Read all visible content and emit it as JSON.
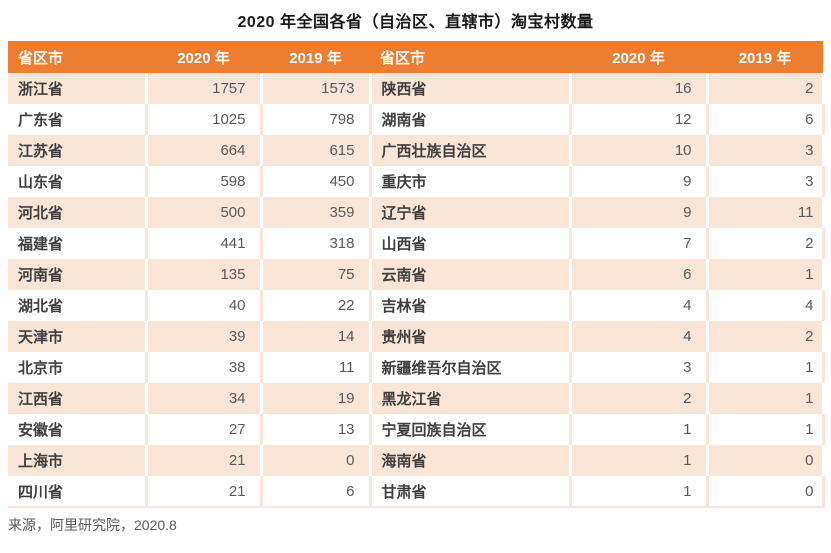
{
  "title": "2020 年全国各省（自治区、直辖市）淘宝村数量",
  "source": "来源，阿里研究院，2020.8",
  "colors": {
    "header_bg": "#ed7d31",
    "header_text": "#ffffff",
    "alt_row_bg": "#fbe5d6",
    "plain_row_bg": "#ffffff",
    "province_text": "#3f3f3f",
    "value_text": "#595959",
    "title_text": "#1a1a1a"
  },
  "chart_data": {
    "type": "table",
    "title": "2020 年全国各省（自治区、直辖市）淘宝村数量",
    "source": "来源，阿里研究院，2020.8",
    "columns": [
      "省区市",
      "2020 年",
      "2019 年",
      "省区市",
      "2020 年",
      "2019 年"
    ],
    "rows": [
      [
        "浙江省",
        1757,
        1573,
        "陕西省",
        16,
        2
      ],
      [
        "广东省",
        1025,
        798,
        "湖南省",
        12,
        6
      ],
      [
        "江苏省",
        664,
        615,
        "广西壮族自治区",
        10,
        3
      ],
      [
        "山东省",
        598,
        450,
        "重庆市",
        9,
        3
      ],
      [
        "河北省",
        500,
        359,
        "辽宁省",
        9,
        11
      ],
      [
        "福建省",
        441,
        318,
        "山西省",
        7,
        2
      ],
      [
        "河南省",
        135,
        75,
        "云南省",
        6,
        1
      ],
      [
        "湖北省",
        40,
        22,
        "吉林省",
        4,
        4
      ],
      [
        "天津市",
        39,
        14,
        "贵州省",
        4,
        2
      ],
      [
        "北京市",
        38,
        11,
        "新疆维吾尔自治区",
        3,
        1
      ],
      [
        "江西省",
        34,
        19,
        "黑龙江省",
        2,
        1
      ],
      [
        "安徽省",
        27,
        13,
        "宁夏回族自治区",
        1,
        1
      ],
      [
        "上海市",
        21,
        0,
        "海南省",
        1,
        0
      ],
      [
        "四川省",
        21,
        6,
        "甘肃省",
        1,
        0
      ]
    ]
  }
}
